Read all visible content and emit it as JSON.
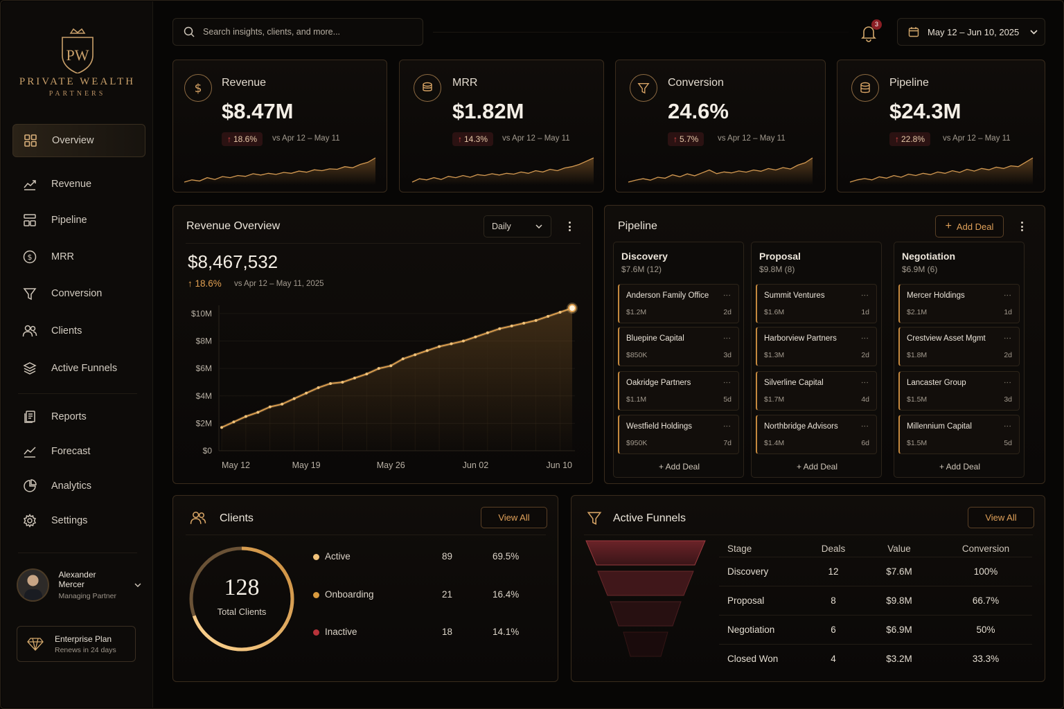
{
  "brand": {
    "monogram": "PW",
    "line1": "PRIVATE WEALTH",
    "line2": "PARTNERS"
  },
  "nav": [
    {
      "label": "Overview",
      "icon": "grid-icon",
      "active": true
    },
    {
      "label": "Revenue",
      "icon": "trend-line-icon"
    },
    {
      "label": "Pipeline",
      "icon": "pipeline-icon"
    },
    {
      "label": "MRR",
      "icon": "dollar-circle-icon"
    },
    {
      "label": "Conversion",
      "icon": "funnel-icon"
    },
    {
      "label": "Clients",
      "icon": "users-icon"
    },
    {
      "label": "Active Funnels",
      "icon": "layers-icon"
    },
    {
      "label": "Reports",
      "icon": "report-icon"
    },
    {
      "label": "Forecast",
      "icon": "forecast-icon"
    },
    {
      "label": "Analytics",
      "icon": "pie-chart-icon"
    },
    {
      "label": "Settings",
      "icon": "gear-icon"
    }
  ],
  "user": {
    "name": "Alexander Mercer",
    "role": "Managing Partner"
  },
  "plan": {
    "name": "Enterprise Plan",
    "renew": "Renews in 24 days"
  },
  "search": {
    "placeholder": "Search insights, clients, and more..."
  },
  "notifications": {
    "count": "3"
  },
  "date_range": "May 12 – Jun 10, 2025",
  "kpis": [
    {
      "label": "Revenue",
      "value": "$8.47M",
      "change": "18.6%",
      "compare": "vs Apr 12 – May 11",
      "icon": "dollar-circle-icon"
    },
    {
      "label": "MRR",
      "value": "$1.82M",
      "change": "14.3%",
      "compare": "vs Apr 12 – May 11",
      "icon": "coins-icon"
    },
    {
      "label": "Conversion",
      "value": "24.6%",
      "change": "5.7%",
      "compare": "vs Apr 12 – May 11",
      "icon": "funnel-icon"
    },
    {
      "label": "Pipeline",
      "value": "$24.3M",
      "change": "22.8%",
      "compare": "vs Apr 12 – May 11",
      "icon": "database-icon"
    }
  ],
  "revenue_overview": {
    "title": "Revenue Overview",
    "period": "Daily",
    "total": "$8,467,532",
    "change": "18.6%",
    "compare": "vs Apr 12 – May 11, 2025"
  },
  "chart_data": {
    "type": "area",
    "x": [
      "May 12",
      "May 13",
      "May 14",
      "May 15",
      "May 16",
      "May 17",
      "May 18",
      "May 19",
      "May 20",
      "May 21",
      "May 22",
      "May 23",
      "May 24",
      "May 25",
      "May 26",
      "May 27",
      "May 28",
      "May 29",
      "May 30",
      "May 31",
      "Jun 01",
      "Jun 02",
      "Jun 03",
      "Jun 04",
      "Jun 05",
      "Jun 06",
      "Jun 07",
      "Jun 08",
      "Jun 09",
      "Jun 10"
    ],
    "values": [
      1.7,
      2.1,
      2.5,
      2.8,
      3.2,
      3.4,
      3.8,
      4.2,
      4.6,
      4.9,
      5.0,
      5.3,
      5.6,
      6.0,
      6.2,
      6.7,
      7.0,
      7.3,
      7.6,
      7.8,
      8.0,
      8.3,
      8.6,
      8.9,
      9.1,
      9.3,
      9.5,
      9.8,
      10.1,
      10.4
    ],
    "xticks": [
      "May 12",
      "May 19",
      "May 26",
      "Jun 02",
      "Jun 10"
    ],
    "yticks": [
      "$10M",
      "$8M",
      "$6M",
      "$4M",
      "$2M",
      "$0"
    ],
    "ylim": [
      0,
      10.4
    ],
    "unit": "$M",
    "color": "#e0a04f",
    "grid": true
  },
  "sparklines": [
    [
      3,
      4,
      3.5,
      5,
      4.2,
      5.5,
      5,
      6,
      5.6,
      6.8,
      6.2,
      7,
      6.5,
      7.4,
      7,
      8,
      7.5,
      8.6,
      8.2,
      9,
      8.8,
      10,
      9.5,
      11,
      12,
      14
    ],
    [
      3,
      4.5,
      4,
      5,
      4.2,
      5.6,
      5,
      6,
      5.2,
      6.4,
      6,
      6.8,
      6.2,
      7,
      6.6,
      7.6,
      7,
      8.2,
      7.6,
      8.8,
      8.2,
      9.4,
      10,
      11,
      12.5,
      14
    ],
    [
      3,
      3.8,
      4.4,
      3.8,
      5,
      4.6,
      6,
      5.2,
      6.4,
      5.6,
      6.8,
      8,
      6.5,
      7.2,
      6.8,
      7.6,
      7.1,
      8,
      7.5,
      8.6,
      8,
      9,
      8.4,
      10,
      11,
      13
    ],
    [
      3,
      4,
      4.6,
      4,
      5.4,
      4.8,
      6,
      5.2,
      6.6,
      6,
      7,
      6.4,
      7.6,
      7,
      8.2,
      7.4,
      8.8,
      8,
      9.2,
      8.6,
      9.8,
      9.2,
      10.4,
      10,
      12,
      14
    ]
  ],
  "pipeline": {
    "title": "Pipeline",
    "add_label": "Add Deal",
    "columns": [
      {
        "name": "Discovery",
        "summary": "$7.6M  (12)",
        "deals": [
          {
            "name": "Anderson Family Office",
            "value": "$1.2M",
            "age": "2d"
          },
          {
            "name": "Bluepine Capital",
            "value": "$850K",
            "age": "3d"
          },
          {
            "name": "Oakridge Partners",
            "value": "$1.1M",
            "age": "5d"
          },
          {
            "name": "Westfield Holdings",
            "value": "$950K",
            "age": "7d"
          }
        ]
      },
      {
        "name": "Proposal",
        "summary": "$9.8M  (8)",
        "deals": [
          {
            "name": "Summit Ventures",
            "value": "$1.6M",
            "age": "1d"
          },
          {
            "name": "Harborview Partners",
            "value": "$1.3M",
            "age": "2d"
          },
          {
            "name": "Silverline Capital",
            "value": "$1.7M",
            "age": "4d"
          },
          {
            "name": "Northbridge Advisors",
            "value": "$1.4M",
            "age": "6d"
          }
        ]
      },
      {
        "name": "Negotiation",
        "summary": "$6.9M  (6)",
        "deals": [
          {
            "name": "Mercer Holdings",
            "value": "$2.1M",
            "age": "1d"
          },
          {
            "name": "Crestview Asset Mgmt",
            "value": "$1.8M",
            "age": "2d"
          },
          {
            "name": "Lancaster Group",
            "value": "$1.5M",
            "age": "3d"
          },
          {
            "name": "Millennium Capital",
            "value": "$1.5M",
            "age": "5d"
          }
        ]
      }
    ]
  },
  "clients": {
    "title": "Clients",
    "view_all": "View All",
    "total": "128",
    "total_label": "Total Clients",
    "segments": [
      {
        "label": "Active",
        "count": "89",
        "pct": "69.5%",
        "color": "#f0c27a"
      },
      {
        "label": "Onboarding",
        "count": "21",
        "pct": "16.4%",
        "color": "#d99a3e"
      },
      {
        "label": "Inactive",
        "count": "18",
        "pct": "14.1%",
        "color": "#b8333a"
      }
    ]
  },
  "funnels": {
    "title": "Active Funnels",
    "view_all": "View All",
    "headers": [
      "Stage",
      "Deals",
      "Value",
      "Conversion"
    ],
    "rows": [
      [
        "Discovery",
        "12",
        "$7.6M",
        "100%"
      ],
      [
        "Proposal",
        "8",
        "$9.8M",
        "66.7%"
      ],
      [
        "Negotiation",
        "6",
        "$6.9M",
        "50%"
      ],
      [
        "Closed Won",
        "4",
        "$3.2M",
        "33.3%"
      ]
    ]
  }
}
